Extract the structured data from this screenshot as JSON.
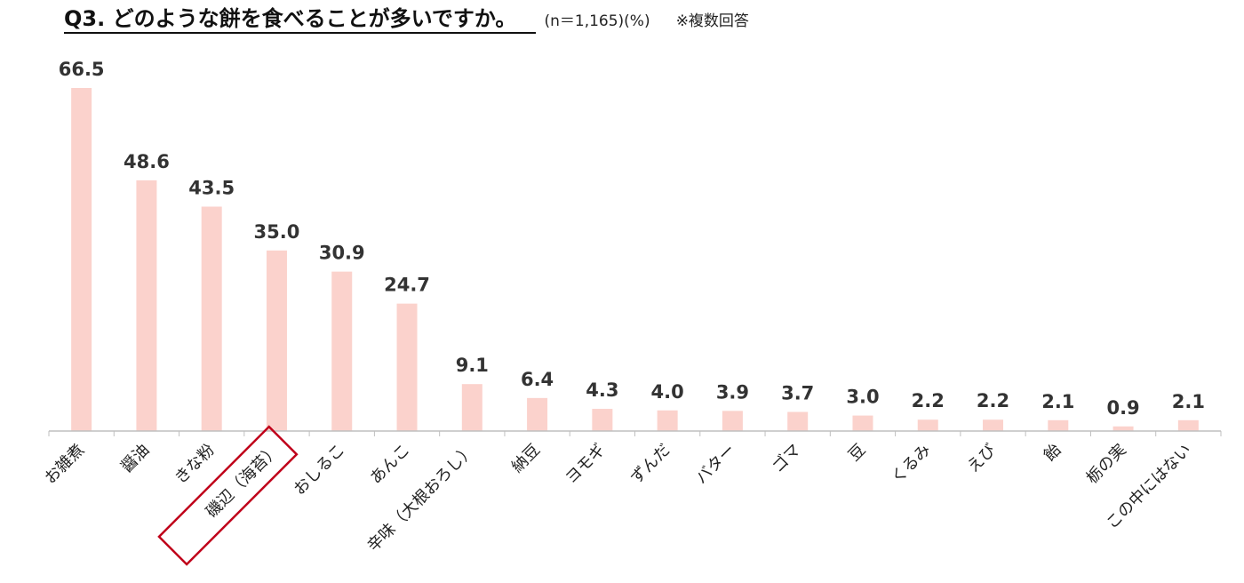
{
  "header": {
    "title": "Q3. どのような餅を食べることが多いですか。",
    "sample": "(n＝1,165)(%)",
    "note": "※複数回答"
  },
  "colors": {
    "bar": "#fbd2cc",
    "axis": "#bfbfbf",
    "highlight": "#c0001a"
  },
  "chart_data": {
    "type": "bar",
    "title": "Q3. どのような餅を食べることが多いですか。",
    "unit": "%",
    "categories": [
      "お雑煮",
      "醤油",
      "きな粉",
      "磯辺（海苔）",
      "おしるこ",
      "あんこ",
      "辛味（大根おろし）",
      "納豆",
      "ヨモギ",
      "ずんだ",
      "バター",
      "ゴマ",
      "豆",
      "くるみ",
      "えび",
      "飴",
      "栃の実",
      "この中にはない"
    ],
    "values": [
      66.5,
      48.6,
      43.5,
      35.0,
      30.9,
      24.7,
      9.1,
      6.4,
      4.3,
      4.0,
      3.9,
      3.7,
      3.0,
      2.2,
      2.2,
      2.1,
      0.9,
      2.1
    ],
    "value_labels": [
      "66.5",
      "48.6",
      "43.5",
      "35.0",
      "30.9",
      "24.7",
      "9.1",
      "6.4",
      "4.3",
      "4.0",
      "3.9",
      "3.7",
      "3.0",
      "2.2",
      "2.2",
      "2.1",
      "0.9",
      "2.1"
    ],
    "ylim": [
      0,
      66.5
    ],
    "highlighted_category": "磯辺（海苔）",
    "grid": false,
    "legend": "none"
  }
}
